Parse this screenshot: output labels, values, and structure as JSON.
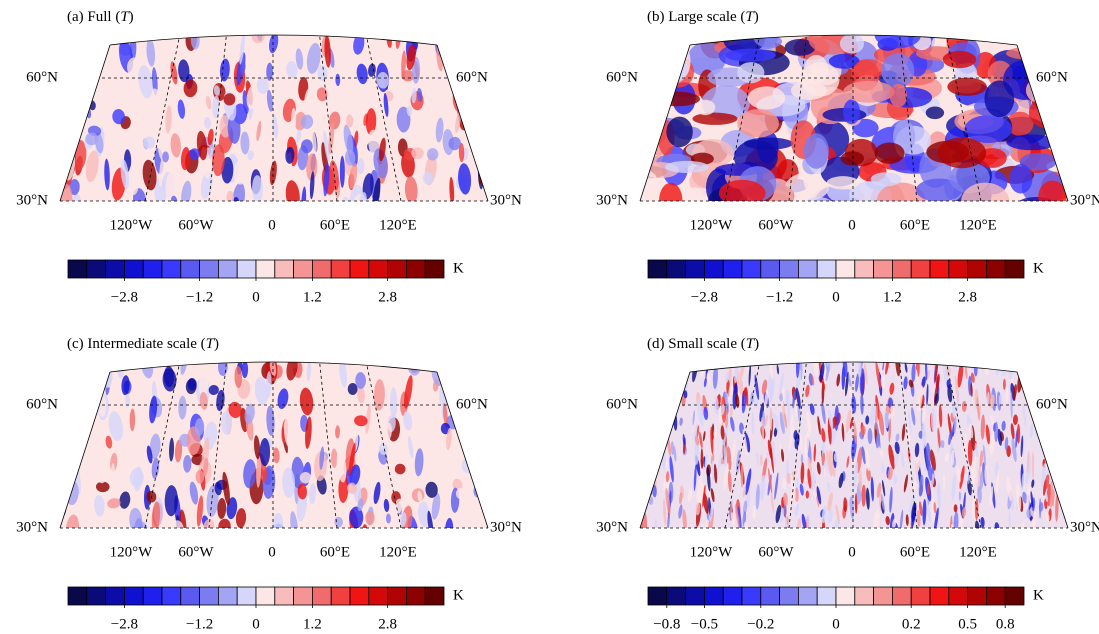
{
  "panels": [
    {
      "title": {
        "prefix": "(a) Full (",
        "variable": "T",
        "suffix": ")"
      },
      "lat_labels": [
        "60°N",
        "30°N"
      ],
      "lon_labels": [
        "120°W",
        "60°W",
        "0",
        "60°E",
        "120°E"
      ],
      "colorbar": {
        "unit": "K",
        "levels": [
          -4,
          -3.6,
          -3.2,
          -2.8,
          -2.4,
          -2,
          -1.6,
          -1.2,
          -0.8,
          -0.4,
          0,
          0.4,
          0.8,
          1.2,
          1.6,
          2,
          2.4,
          2.8,
          3.2,
          3.6,
          4
        ],
        "colors": [
          "#08084a",
          "#0a0a78",
          "#0c0ca8",
          "#1010d0",
          "#2020ee",
          "#3a3aff",
          "#5a5af0",
          "#7c7cf0",
          "#a4a4f4",
          "#d6d6fa",
          "#fde6e6",
          "#f8bcbc",
          "#f49494",
          "#f06c6c",
          "#f04040",
          "#f01414",
          "#d40808",
          "#b00404",
          "#8c0000",
          "#640000"
        ],
        "ticks": [
          {
            "value": -2.8,
            "label": "−2.8"
          },
          {
            "value": -1.2,
            "label": "−1.2"
          },
          0,
          1.2,
          2.8
        ]
      }
    },
    {
      "title": {
        "prefix": "(b) Large scale (",
        "variable": "T",
        "suffix": ")"
      },
      "lat_labels": [
        "60°N",
        "30°N"
      ],
      "lon_labels": [
        "120°W",
        "60°W",
        "0",
        "60°E",
        "120°E"
      ],
      "colorbar": {
        "unit": "K",
        "levels": [
          -4,
          -3.6,
          -3.2,
          -2.8,
          -2.4,
          -2,
          -1.6,
          -1.2,
          -0.8,
          -0.4,
          0,
          0.4,
          0.8,
          1.2,
          1.6,
          2,
          2.4,
          2.8,
          3.2,
          3.6,
          4
        ],
        "colors": [
          "#08084a",
          "#0a0a78",
          "#0c0ca8",
          "#1010d0",
          "#2020ee",
          "#3a3aff",
          "#5a5af0",
          "#7c7cf0",
          "#a4a4f4",
          "#d6d6fa",
          "#fde6e6",
          "#f8bcbc",
          "#f49494",
          "#f06c6c",
          "#f04040",
          "#f01414",
          "#d40808",
          "#b00404",
          "#8c0000",
          "#640000"
        ],
        "ticks": [
          {
            "value": -2.8,
            "label": "−2.8"
          },
          {
            "value": -1.2,
            "label": "−1.2"
          },
          0,
          1.2,
          2.8
        ]
      }
    },
    {
      "title": {
        "prefix": "(c) Intermediate scale (",
        "variable": "T",
        "suffix": ")"
      },
      "lat_labels": [
        "60°N",
        "30°N"
      ],
      "lon_labels": [
        "120°W",
        "60°W",
        "0",
        "60°E",
        "120°E"
      ],
      "colorbar": {
        "unit": "K",
        "levels": [
          -4,
          -3.6,
          -3.2,
          -2.8,
          -2.4,
          -2,
          -1.6,
          -1.2,
          -0.8,
          -0.4,
          0,
          0.4,
          0.8,
          1.2,
          1.6,
          2,
          2.4,
          2.8,
          3.2,
          3.6,
          4
        ],
        "colors": [
          "#08084a",
          "#0a0a78",
          "#0c0ca8",
          "#1010d0",
          "#2020ee",
          "#3a3aff",
          "#5a5af0",
          "#7c7cf0",
          "#a4a4f4",
          "#d6d6fa",
          "#fde6e6",
          "#f8bcbc",
          "#f49494",
          "#f06c6c",
          "#f04040",
          "#f01414",
          "#d40808",
          "#b00404",
          "#8c0000",
          "#640000"
        ],
        "ticks": [
          {
            "value": -2.8,
            "label": "−2.8"
          },
          {
            "value": -1.2,
            "label": "−1.2"
          },
          0,
          1.2,
          2.8
        ]
      }
    },
    {
      "title": {
        "prefix": "(d) Small scale (",
        "variable": "T",
        "suffix": ")"
      },
      "lat_labels": [
        "60°N",
        "30°N"
      ],
      "lon_labels": [
        "120°W",
        "60°W",
        "0",
        "60°E",
        "120°E"
      ],
      "colorbar": {
        "unit": "K",
        "levels": [
          -1,
          -0.8,
          -0.7,
          -0.5,
          -0.4,
          -0.3,
          -0.2,
          -0.15,
          -0.1,
          -0.05,
          0,
          0.05,
          0.1,
          0.15,
          0.2,
          0.3,
          0.4,
          0.5,
          0.7,
          0.8,
          1
        ],
        "colors": [
          "#08084a",
          "#0a0a78",
          "#0c0ca8",
          "#1010d0",
          "#2020ee",
          "#3a3aff",
          "#5a5af0",
          "#7c7cf0",
          "#a4a4f4",
          "#d6d6fa",
          "#fde6e6",
          "#f8bcbc",
          "#f49494",
          "#f06c6c",
          "#f04040",
          "#f01414",
          "#d40808",
          "#b00404",
          "#8c0000",
          "#640000"
        ],
        "ticks": [
          {
            "value": -0.8,
            "label": "−0.8"
          },
          {
            "value": -0.5,
            "label": "−0.5"
          },
          {
            "value": -0.2,
            "label": "−0.2"
          },
          0,
          0.2,
          0.5,
          0.8
        ]
      }
    }
  ]
}
